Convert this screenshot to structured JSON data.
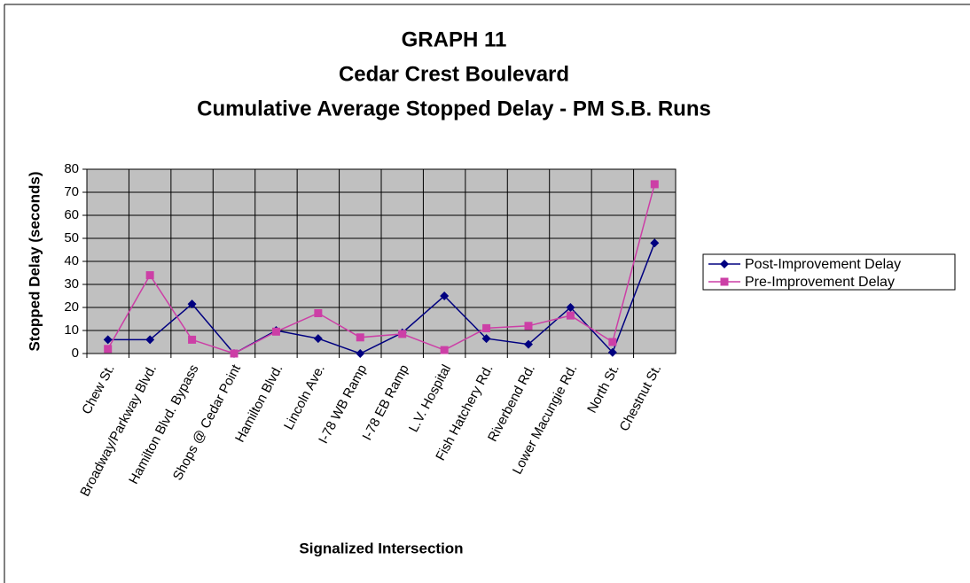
{
  "chart_data": {
    "type": "line",
    "title": [
      "GRAPH 11",
      "Cedar Crest Boulevard",
      "Cumulative Average Stopped Delay - PM S.B. Runs"
    ],
    "x_label": "Signalized Intersection",
    "y_label": "Stopped Delay (seconds)",
    "categories": [
      "Chew St.",
      "Broadway/Parkway Blvd.",
      "Hamilton Blvd. Bypass",
      "Shops @ Cedar Point",
      "Hamilton Blvd.",
      "Lincoln Ave.",
      "I-78 WB Ramp",
      "I-78 EB Ramp",
      "L.V. Hospital",
      "Fish Hatchery Rd.",
      "Riverbend Rd.",
      "Lower Macungie Rd.",
      "North St.",
      "Chestnut St."
    ],
    "series": [
      {
        "name": "Post-Improvement Delay",
        "color": "#000080",
        "marker": "diamond",
        "values": [
          6,
          6,
          21.5,
          0,
          10,
          6.5,
          0,
          9,
          25,
          6.5,
          4,
          20,
          0.5,
          48
        ]
      },
      {
        "name": "Pre-Improvement Delay",
        "color": "#cc3fa6",
        "marker": "square",
        "values": [
          2,
          34,
          6,
          0,
          9.5,
          17.5,
          7,
          8.5,
          1.5,
          11,
          12,
          16.5,
          5,
          73.5
        ]
      }
    ],
    "ylim": [
      0,
      80
    ],
    "yticks": [
      0,
      10,
      20,
      30,
      40,
      50,
      60,
      70,
      80
    ],
    "grid": true,
    "plot_background": "#c0c0c0",
    "legend": "right"
  }
}
